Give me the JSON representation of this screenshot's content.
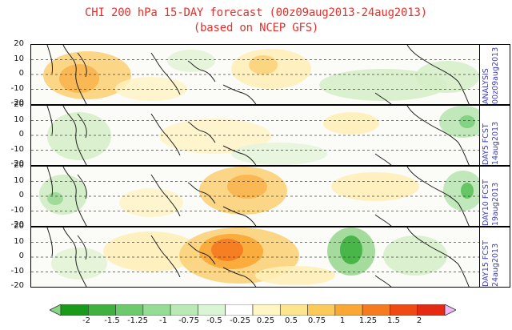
{
  "title": {
    "line1": "CHI 200 hPa 15-DAY forecast (00z09aug2013-24aug2013)",
    "line2": "(based on NCEP GFS)"
  },
  "y_ticks": [
    "20",
    "10",
    "0",
    "-10",
    "-20"
  ],
  "panels": [
    {
      "label_main": "ANALYSIS",
      "label_date": "00z09aug2013"
    },
    {
      "label_main": "DAY5 FCST",
      "label_date": "14aug2013"
    },
    {
      "label_main": "DAY10 FCST",
      "label_date": "19aug2013"
    },
    {
      "label_main": "DAY15 FCST",
      "label_date": "24aug2013"
    }
  ],
  "colorbar": {
    "ticks": [
      "-2",
      "-1.5",
      "-1.25",
      "-1",
      "-0.75",
      "-0.5",
      "-0.25",
      "0.25",
      "0.5",
      "0.75",
      "1",
      "1.25",
      "1.5",
      "2"
    ],
    "colors": [
      "#1a9a1a",
      "#3fb13f",
      "#6cc96c",
      "#95dc95",
      "#b9eab6",
      "#d9f5d3",
      "#ffffff",
      "#fff6c4",
      "#fde58e",
      "#fcc95a",
      "#f9a735",
      "#f57a20",
      "#ef4a14",
      "#e42a12"
    ],
    "under_color": "#86d686",
    "over_color": "#f3b8f3"
  }
}
